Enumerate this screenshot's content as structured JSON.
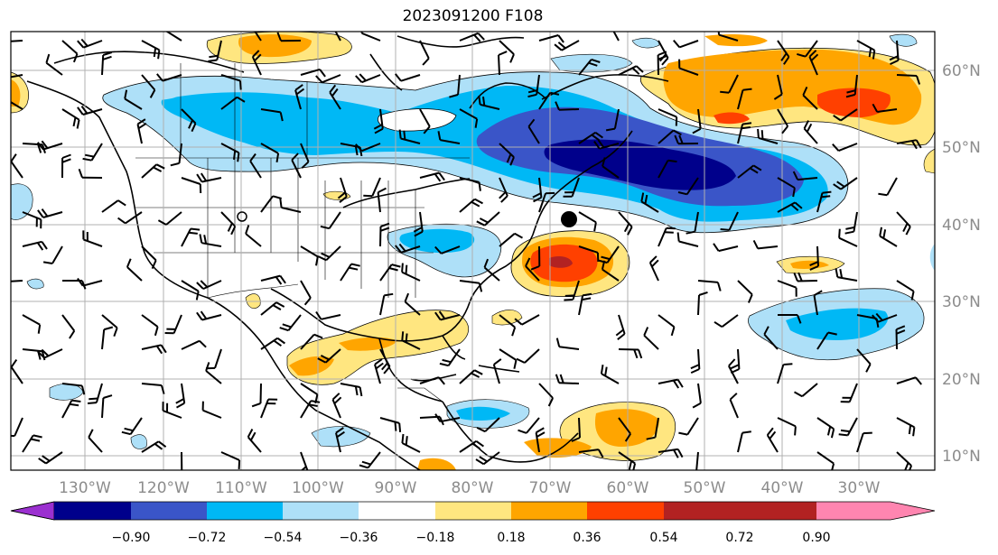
{
  "title": "2023091200 F108",
  "longitude_labels": [
    "130°W",
    "120°W",
    "110°W",
    "100°W",
    "90°W",
    "80°W",
    "70°W",
    "60°W",
    "50°W",
    "40°W",
    "30°W"
  ],
  "latitude_labels": [
    "60°N",
    "50°N",
    "40°N",
    "30°N",
    "20°N",
    "10°N"
  ],
  "colorbar": {
    "tick_labels": [
      "−0.90",
      "−0.72",
      "−0.54",
      "−0.36",
      "−0.18",
      "0.18",
      "0.36",
      "0.54",
      "0.72",
      "0.90"
    ],
    "colors": [
      "#9b30d0",
      "#00008b",
      "#3a55c8",
      "#00b8f5",
      "#aee0f8",
      "#ffffff",
      "#ffe680",
      "#ffa500",
      "#ff4000",
      "#b22222",
      "#ff85b0"
    ]
  },
  "map_extent": {
    "lon": [
      -141,
      -20
    ],
    "lat": [
      8,
      65
    ]
  },
  "anomaly_colors": {
    "neg_strong": "#00008b",
    "neg_mid": "#3a55c8",
    "neg_light": "#00b8f5",
    "neg_pale": "#aee0f8",
    "pos_pale": "#ffe680",
    "pos_light": "#ffa500",
    "pos_mid": "#ff4000",
    "pos_strong": "#b22222"
  },
  "storm_marker_icon": "black-dot-icon"
}
